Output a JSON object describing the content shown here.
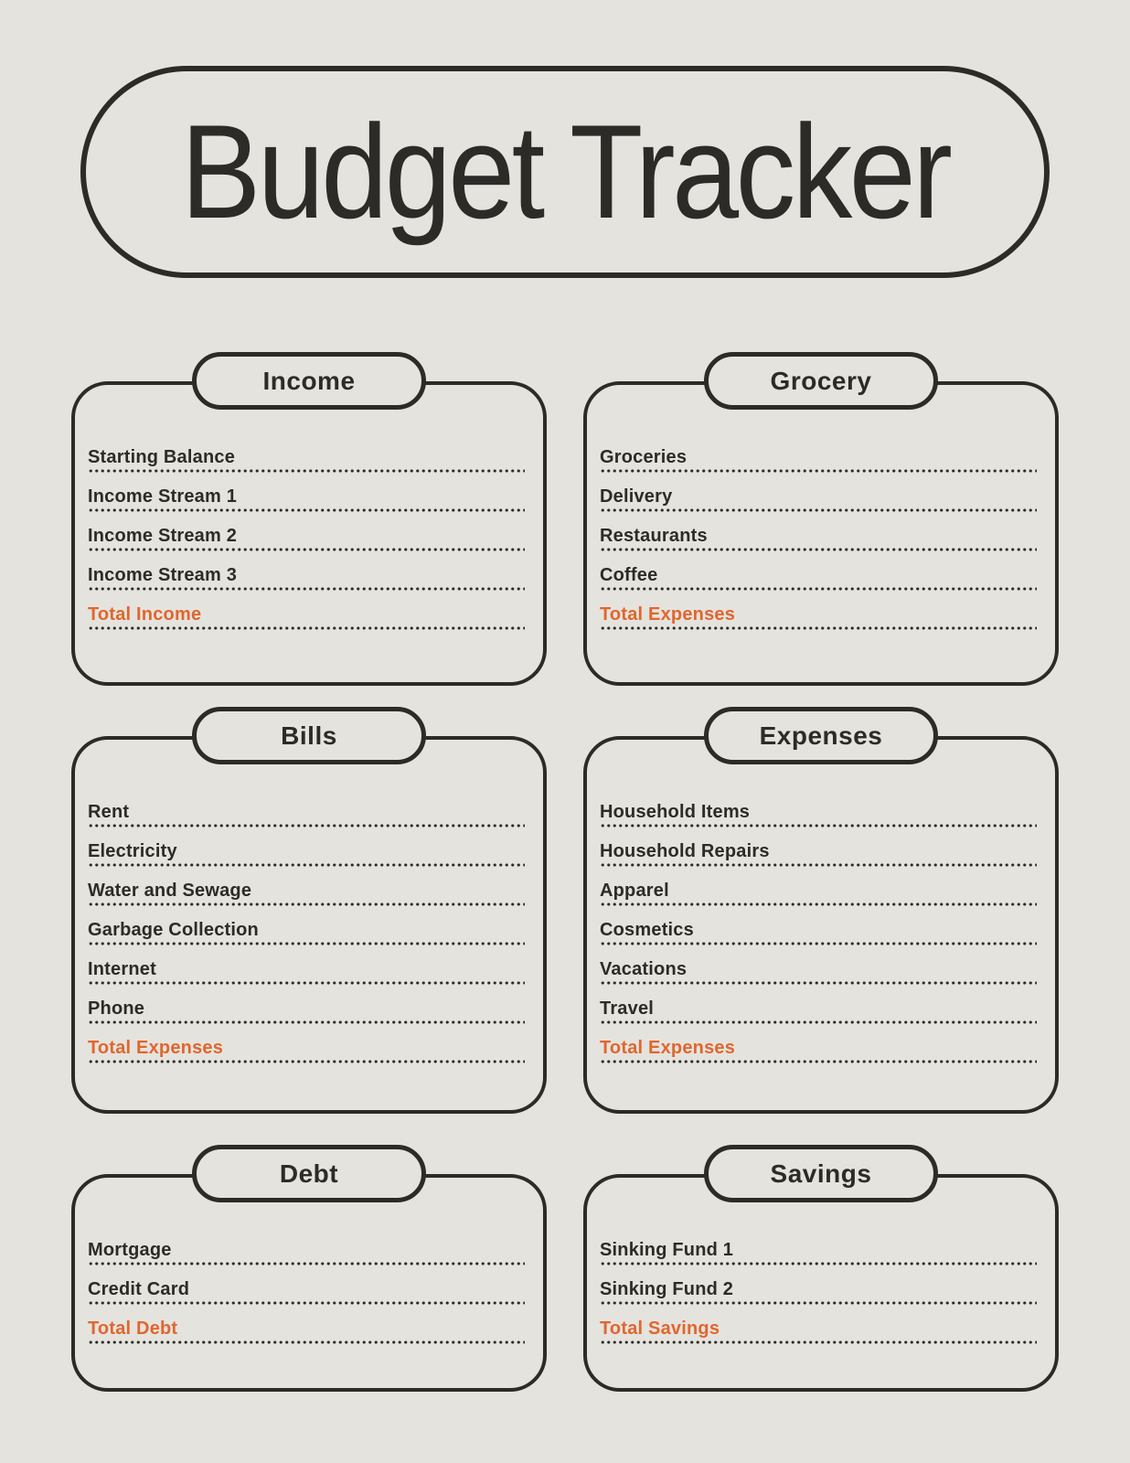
{
  "page": {
    "title": "Budget Tracker"
  },
  "colors": {
    "background": "#e5e3dd",
    "ink": "#2d2b28",
    "accent": "#e0662f"
  },
  "sections": [
    {
      "id": "income",
      "title": "Income",
      "items": [
        {
          "label": "Starting Balance",
          "emphasis": false
        },
        {
          "label": "Income Stream 1",
          "emphasis": false
        },
        {
          "label": "Income Stream 2",
          "emphasis": false
        },
        {
          "label": "Income Stream 3",
          "emphasis": false
        },
        {
          "label": "Total Income",
          "emphasis": true
        }
      ]
    },
    {
      "id": "grocery",
      "title": "Grocery",
      "items": [
        {
          "label": "Groceries",
          "emphasis": false
        },
        {
          "label": "Delivery",
          "emphasis": false
        },
        {
          "label": "Restaurants",
          "emphasis": false
        },
        {
          "label": "Coffee",
          "emphasis": false
        },
        {
          "label": "Total Expenses",
          "emphasis": true
        }
      ]
    },
    {
      "id": "bills",
      "title": "Bills",
      "items": [
        {
          "label": "Rent",
          "emphasis": false
        },
        {
          "label": "Electricity",
          "emphasis": false
        },
        {
          "label": "Water and Sewage",
          "emphasis": false
        },
        {
          "label": "Garbage Collection",
          "emphasis": false
        },
        {
          "label": "Internet",
          "emphasis": false
        },
        {
          "label": "Phone",
          "emphasis": false
        },
        {
          "label": "Total Expenses",
          "emphasis": true
        }
      ]
    },
    {
      "id": "expenses",
      "title": "Expenses",
      "items": [
        {
          "label": "Household Items",
          "emphasis": false
        },
        {
          "label": "Household Repairs",
          "emphasis": false
        },
        {
          "label": "Apparel",
          "emphasis": false
        },
        {
          "label": "Cosmetics",
          "emphasis": false
        },
        {
          "label": "Vacations",
          "emphasis": false
        },
        {
          "label": "Travel",
          "emphasis": false
        },
        {
          "label": "Total Expenses",
          "emphasis": true
        }
      ]
    },
    {
      "id": "debt",
      "title": "Debt",
      "items": [
        {
          "label": "Mortgage",
          "emphasis": false
        },
        {
          "label": "Credit Card",
          "emphasis": false
        },
        {
          "label": "Total Debt",
          "emphasis": true
        }
      ]
    },
    {
      "id": "savings",
      "title": "Savings",
      "items": [
        {
          "label": "Sinking Fund 1",
          "emphasis": false
        },
        {
          "label": "Sinking Fund 2",
          "emphasis": false
        },
        {
          "label": "Total Savings",
          "emphasis": true
        }
      ]
    }
  ]
}
